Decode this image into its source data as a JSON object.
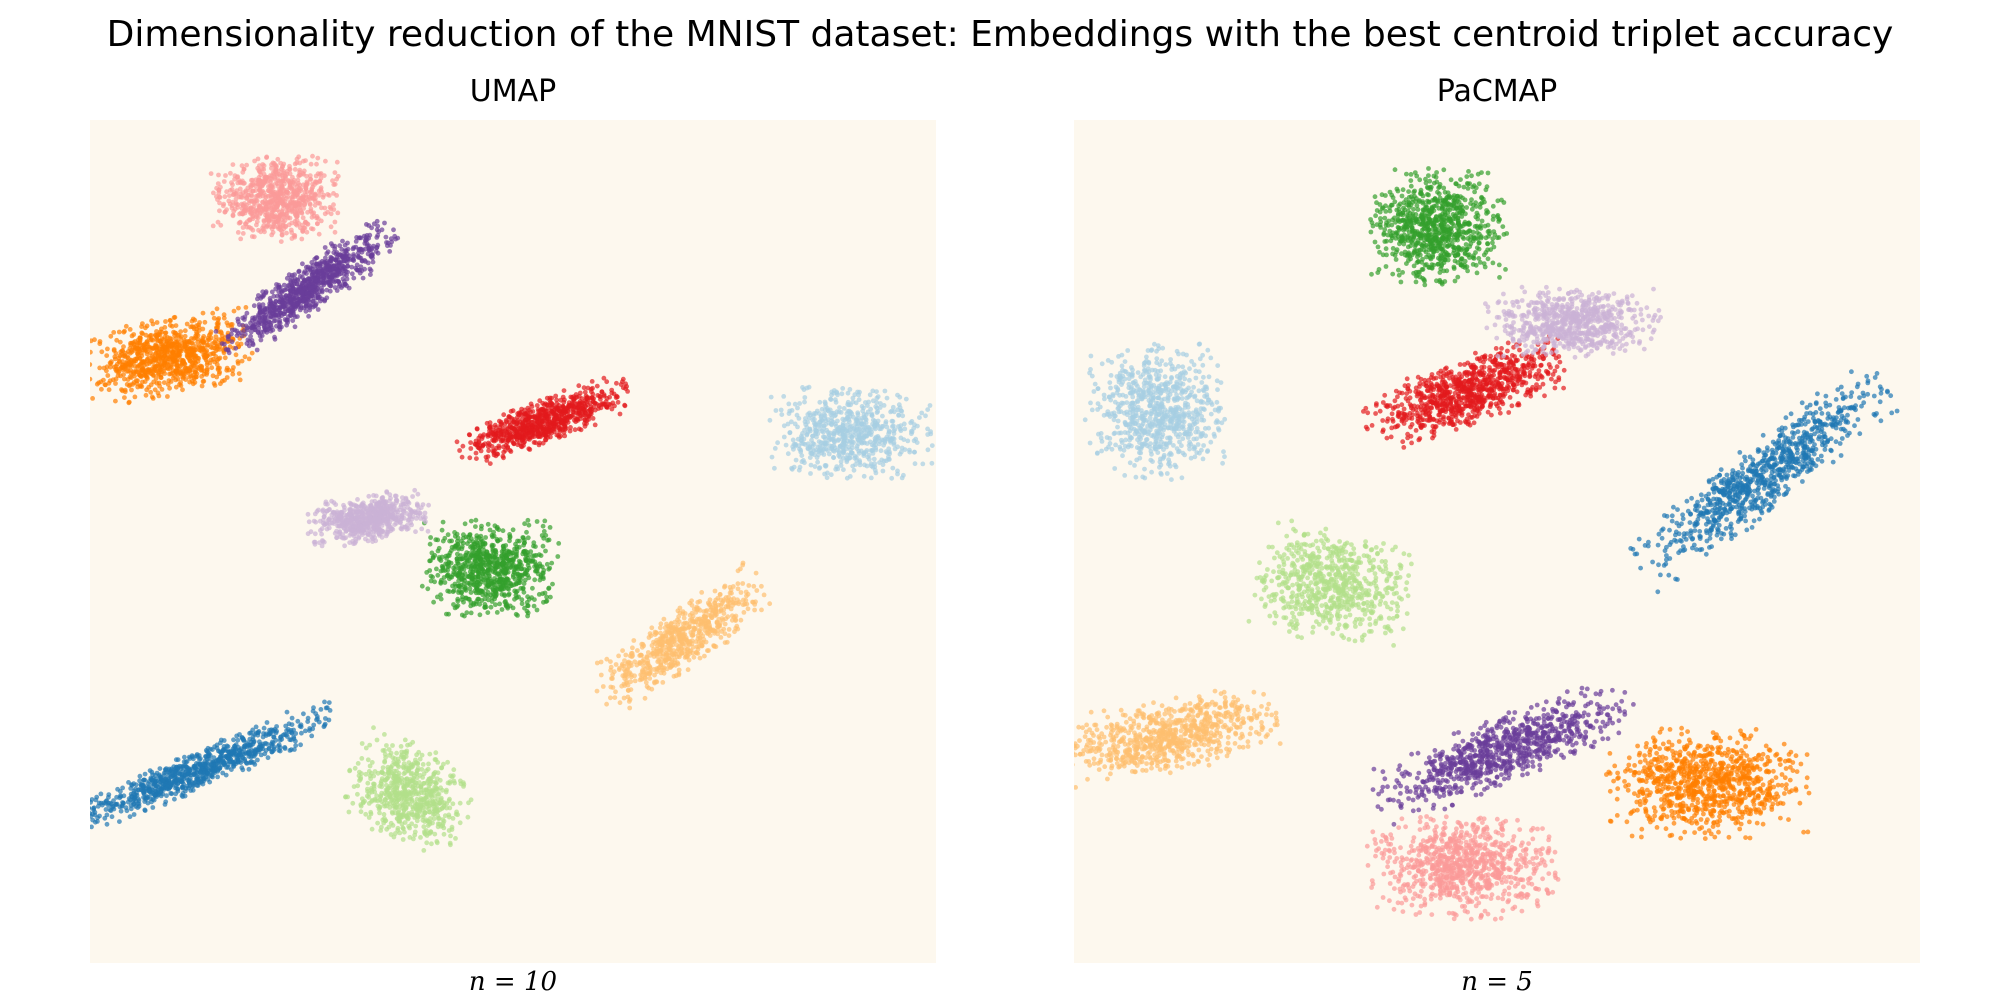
{
  "chart_data": [
    {
      "type": "scatter",
      "title": "UMAP",
      "xlabel": "n = 10",
      "ylabel": "",
      "xlim": [
        0,
        1
      ],
      "ylim": [
        0,
        1
      ],
      "grid": false,
      "axes_visible": false,
      "background": "#fdf8ee",
      "series": [
        {
          "color": "#1f78b4",
          "approx_points": 850,
          "center": [
            0.123,
            0.227
          ],
          "spread": [
            0.02,
            0.157
          ],
          "angle_deg": -67
        },
        {
          "color": "#a6cee3",
          "approx_points": 650,
          "center": [
            0.9,
            0.628
          ],
          "spread": [
            0.048,
            0.085
          ],
          "angle_deg": 90
        },
        {
          "color": "#33a02c",
          "approx_points": 800,
          "center": [
            0.473,
            0.468
          ],
          "spread": [
            0.05,
            0.071
          ],
          "angle_deg": 90
        },
        {
          "color": "#b2df8a",
          "approx_points": 650,
          "center": [
            0.377,
            0.2
          ],
          "spread": [
            0.066,
            0.052
          ],
          "angle_deg": -25
        },
        {
          "color": "#e31a1c",
          "approx_points": 750,
          "center": [
            0.535,
            0.642
          ],
          "spread": [
            0.023,
            0.095
          ],
          "angle_deg": -70
        },
        {
          "color": "#fb9a99",
          "approx_points": 750,
          "center": [
            0.219,
            0.907
          ],
          "spread": [
            0.066,
            0.045
          ],
          "angle_deg": 0
        },
        {
          "color": "#ff7f00",
          "approx_points": 850,
          "center": [
            0.097,
            0.72
          ],
          "spread": [
            0.04,
            0.09
          ],
          "angle_deg": -78
        },
        {
          "color": "#fdbf6f",
          "approx_points": 650,
          "center": [
            0.7,
            0.383
          ],
          "spread": [
            0.031,
            0.102
          ],
          "angle_deg": -55
        },
        {
          "color": "#6a3d9a",
          "approx_points": 850,
          "center": [
            0.258,
            0.8
          ],
          "spread": [
            0.025,
            0.108
          ],
          "angle_deg": -55
        },
        {
          "color": "#cab2d6",
          "approx_points": 650,
          "center": [
            0.329,
            0.527
          ],
          "spread": [
            0.064,
            0.025
          ],
          "angle_deg": 10
        }
      ]
    },
    {
      "type": "scatter",
      "title": "PaCMAP",
      "xlabel": "n = 5",
      "ylabel": "",
      "xlim": [
        0,
        1
      ],
      "ylim": [
        0,
        1
      ],
      "grid": false,
      "axes_visible": false,
      "background": "#fdf8ee",
      "series": [
        {
          "color": "#1f78b4",
          "approx_points": 850,
          "center": [
            0.815,
            0.578
          ],
          "spread": [
            0.16,
            0.035
          ],
          "angle_deg": 38
        },
        {
          "color": "#a6cee3",
          "approx_points": 750,
          "center": [
            0.097,
            0.653
          ],
          "spread": [
            0.074,
            0.071
          ],
          "angle_deg": 0
        },
        {
          "color": "#33a02c",
          "approx_points": 850,
          "center": [
            0.43,
            0.873
          ],
          "spread": [
            0.061,
            0.071
          ],
          "angle_deg": 90
        },
        {
          "color": "#b2df8a",
          "approx_points": 700,
          "center": [
            0.307,
            0.448
          ],
          "spread": [
            0.08,
            0.06
          ],
          "angle_deg": -10
        },
        {
          "color": "#e31a1c",
          "approx_points": 850,
          "center": [
            0.463,
            0.677
          ],
          "spread": [
            0.035,
            0.112
          ],
          "angle_deg": -70
        },
        {
          "color": "#fb9a99",
          "approx_points": 850,
          "center": [
            0.459,
            0.115
          ],
          "spread": [
            0.1,
            0.055
          ],
          "angle_deg": 0
        },
        {
          "color": "#ff7f00",
          "approx_points": 900,
          "center": [
            0.747,
            0.213
          ],
          "spread": [
            0.057,
            0.106
          ],
          "angle_deg": 90
        },
        {
          "color": "#fdbf6f",
          "approx_points": 750,
          "center": [
            0.115,
            0.27
          ],
          "spread": [
            0.038,
            0.114
          ],
          "angle_deg": -80
        },
        {
          "color": "#6a3d9a",
          "approx_points": 850,
          "center": [
            0.508,
            0.253
          ],
          "spread": [
            0.142,
            0.035
          ],
          "angle_deg": 22
        },
        {
          "color": "#cab2d6",
          "approx_points": 700,
          "center": [
            0.59,
            0.76
          ],
          "spread": [
            0.091,
            0.037
          ],
          "angle_deg": 0
        }
      ]
    }
  ],
  "figure": {
    "suptitle": "Dimensionality reduction of the MNIST dataset: Embeddings with the best centroid triplet accuracy",
    "panels": [
      {
        "title": "UMAP",
        "xlabel": "n = 10"
      },
      {
        "title": "PaCMAP",
        "xlabel": "n = 5"
      }
    ]
  }
}
